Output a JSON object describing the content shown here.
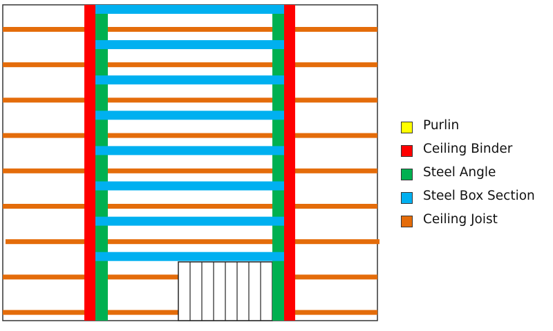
{
  "legend": [
    {
      "label": "Purlin",
      "color": "#ffff00"
    },
    {
      "label": "Ceiling Binder",
      "color": "#ff0000"
    },
    {
      "label": "Steel Angle",
      "color": "#00b050"
    },
    {
      "label": "Steel Box Section",
      "color": "#00b0f0"
    },
    {
      "label": "Ceiling Joist",
      "color": "#e46c0a"
    }
  ],
  "counts": {
    "ceiling_joists": 9,
    "steel_box_sections": 8,
    "ceiling_binders": 2,
    "steel_angles": 2,
    "hatched_opening_divisions": 8
  }
}
